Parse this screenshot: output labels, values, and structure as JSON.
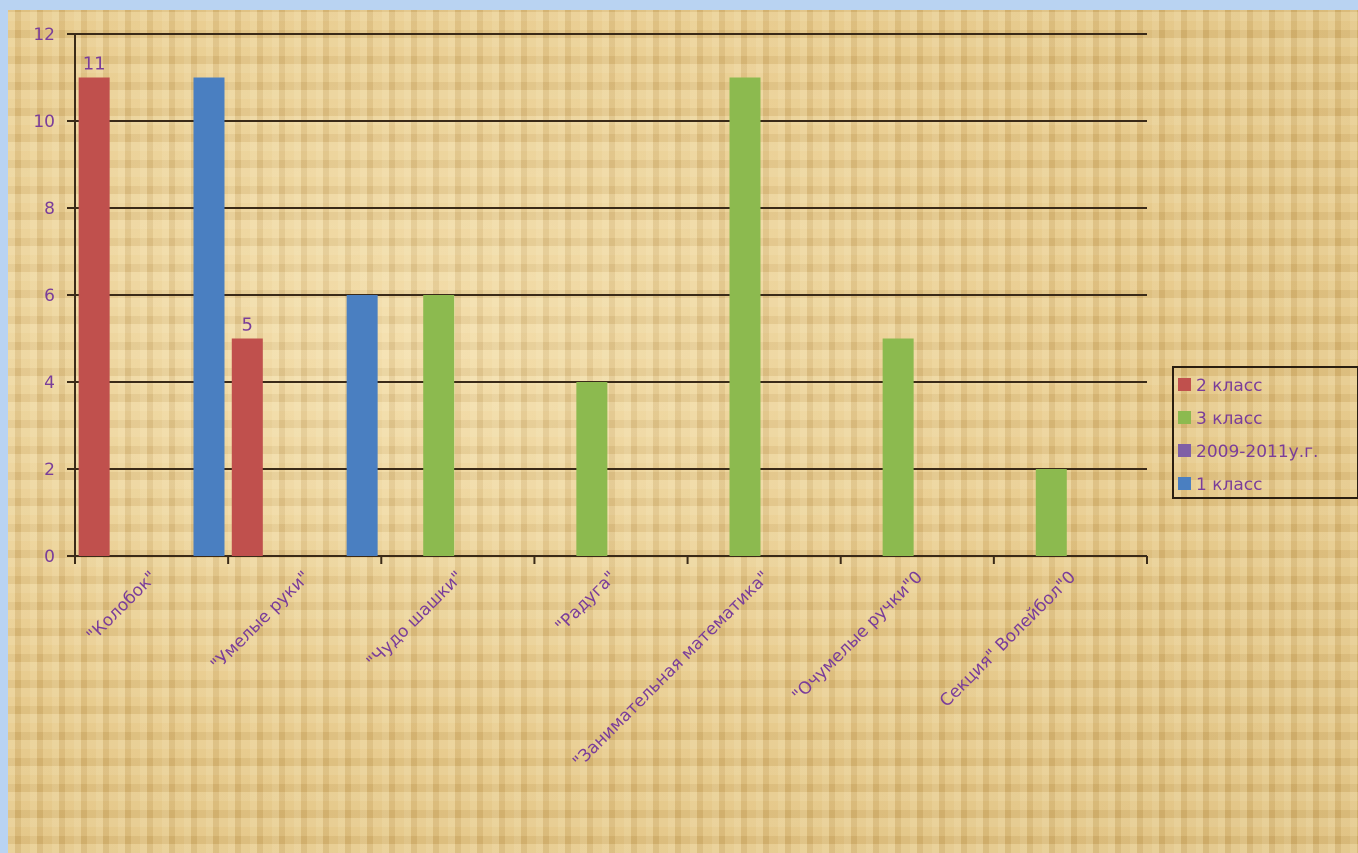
{
  "chart_data": {
    "type": "bar",
    "categories": [
      "\"Колобок\"",
      "\"Умелые руки\"",
      "\"Чудо шашки\"",
      "\"Радуга\"",
      "\"Занимательная математика\"",
      "\"Очумелые ручки\"0",
      "Секция\" Волейбол\"0"
    ],
    "series": [
      {
        "name": "2 класс",
        "color": "#c0504d",
        "values": [
          11,
          5,
          null,
          null,
          null,
          null,
          null
        ]
      },
      {
        "name": "3 класс",
        "color": "#8cba4f",
        "values": [
          null,
          null,
          6,
          4,
          11,
          5,
          2
        ]
      },
      {
        "name": "2009-2011у.г.",
        "color": "#7f5fa6",
        "values": [
          null,
          null,
          null,
          null,
          null,
          null,
          null
        ]
      },
      {
        "name": "1 класс",
        "color": "#4a7fc1",
        "values": [
          11,
          6,
          null,
          null,
          null,
          null,
          null
        ]
      }
    ],
    "data_labels": [
      {
        "series": 0,
        "index": 0,
        "text": "11"
      },
      {
        "series": 0,
        "index": 1,
        "text": "5"
      }
    ],
    "yticks": [
      "0",
      "2",
      "4",
      "6",
      "8",
      "10",
      "12"
    ],
    "ylim": [
      0,
      12
    ],
    "grid": true,
    "legend": "right",
    "title": "",
    "xlabel": "",
    "ylabel": ""
  }
}
